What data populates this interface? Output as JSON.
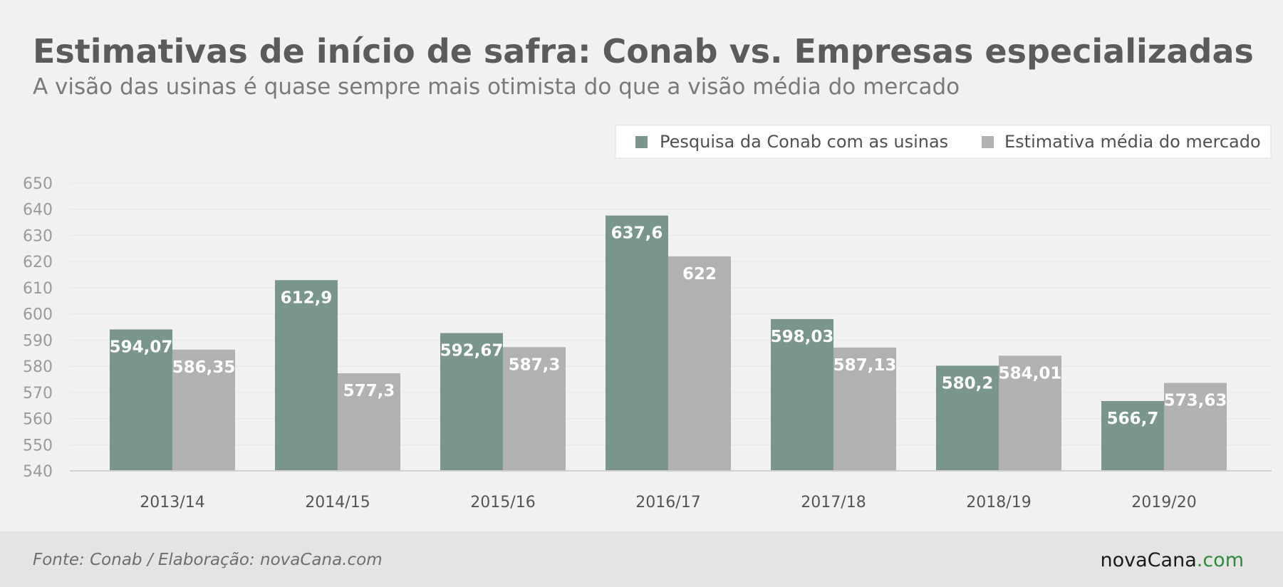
{
  "chart_data": {
    "type": "bar",
    "title": "Estimativas de início de safra: Conab vs. Empresas especializadas",
    "subtitle": "A visão das usinas é quase sempre mais otimista do que a visão média do mercado",
    "categories": [
      "2013/14",
      "2014/15",
      "2015/16",
      "2016/17",
      "2017/18",
      "2018/19",
      "2019/20"
    ],
    "series": [
      {
        "name": "Pesquisa da Conab com as usinas",
        "color": "#7a968c",
        "values": [
          594.07,
          612.9,
          592.67,
          637.6,
          598.03,
          580.2,
          566.7
        ],
        "labels": [
          "594,07",
          "612,9",
          "592,67",
          "637,6",
          "598,03",
          "580,2",
          "566,7"
        ]
      },
      {
        "name": "Estimativa média do mercado",
        "color": "#b1b1b1",
        "values": [
          586.35,
          577.3,
          587.3,
          622,
          587.13,
          584.01,
          573.63
        ],
        "labels": [
          "586,35",
          "577,3",
          "587,3",
          "622",
          "587,13",
          "584,01",
          "573,63"
        ]
      }
    ],
    "ylim": [
      540,
      650
    ],
    "yticks": [
      "540",
      "550",
      "560",
      "570",
      "580",
      "590",
      "600",
      "610",
      "620",
      "630",
      "640",
      "650"
    ],
    "grid": true,
    "legend_position": "top-right",
    "xlabel": "",
    "ylabel": ""
  },
  "footer": {
    "source": "Fonte: Conab / Elaboração: novaCana.com",
    "brand_name": "novaCana",
    "brand_suffix": ".com",
    "brand_color": "#1a1a1a",
    "brand_accent": "#2e8b3e"
  }
}
